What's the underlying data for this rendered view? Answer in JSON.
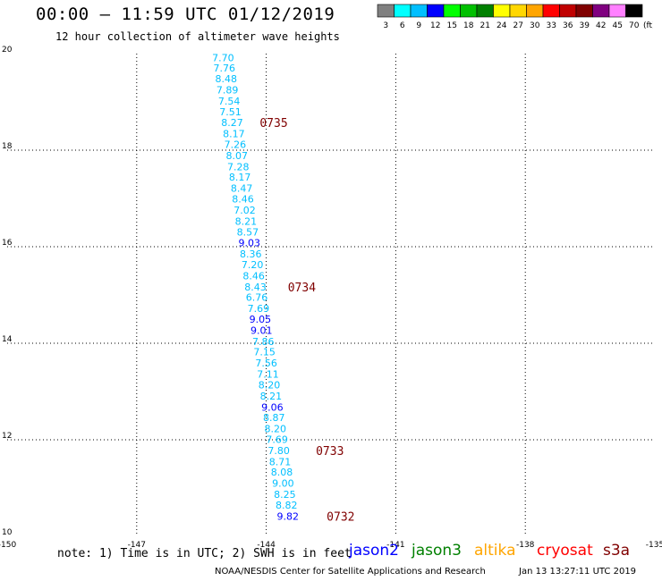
{
  "header": {
    "title": "00:00 – 11:59 UTC 01/12/2019",
    "subtitle": "12 hour collection of altimeter wave heights"
  },
  "colorbar": {
    "labels": [
      "3",
      "6",
      "9",
      "12",
      "15",
      "18",
      "21",
      "24",
      "27",
      "30",
      "33",
      "36",
      "39",
      "42",
      "45",
      "70"
    ],
    "unit": "(ft)",
    "colors": [
      "#808080",
      "#00ffff",
      "#00bfff",
      "#0000ff",
      "#00ff00",
      "#00c000",
      "#008000",
      "#ffff00",
      "#ffd700",
      "#ffa500",
      "#ff0000",
      "#c00000",
      "#800000",
      "#800080",
      "#ff80ff",
      "#000000"
    ]
  },
  "chart_data": {
    "type": "scatter",
    "xlim": [
      -150,
      -135
    ],
    "ylim": [
      10,
      20
    ],
    "x_ticks": [
      "-150",
      "-147",
      "-144",
      "-141",
      "-138",
      "-135"
    ],
    "y_ticks": [
      "10",
      "12",
      "14",
      "16",
      "18",
      "20"
    ],
    "grid": true,
    "legend": "bottom",
    "series": [
      {
        "satellite": "jason3",
        "points": [
          {
            "x": -145.0,
            "y": 19.92,
            "value": "7.70",
            "color": "#00bfff"
          },
          {
            "x": -144.97,
            "y": 19.7,
            "value": "7.76",
            "color": "#00bfff"
          },
          {
            "x": -144.93,
            "y": 19.48,
            "value": "8.48",
            "color": "#00bfff"
          },
          {
            "x": -144.9,
            "y": 19.25,
            "value": "7.89",
            "color": "#00bfff"
          },
          {
            "x": -144.86,
            "y": 19.02,
            "value": "7.54",
            "color": "#00bfff"
          },
          {
            "x": -144.83,
            "y": 18.8,
            "value": "7.51",
            "color": "#00bfff"
          },
          {
            "x": -144.79,
            "y": 18.57,
            "value": "8.27",
            "color": "#00bfff"
          },
          {
            "x": -144.75,
            "y": 18.34,
            "value": "8.17",
            "color": "#00bfff"
          },
          {
            "x": -144.72,
            "y": 18.12,
            "value": "7.26",
            "color": "#00bfff"
          },
          {
            "x": -144.68,
            "y": 17.89,
            "value": "8.07",
            "color": "#00bfff"
          },
          {
            "x": -144.65,
            "y": 17.66,
            "value": "7.28",
            "color": "#00bfff"
          },
          {
            "x": -144.61,
            "y": 17.44,
            "value": "8.17",
            "color": "#00bfff"
          },
          {
            "x": -144.57,
            "y": 17.21,
            "value": "8.47",
            "color": "#00bfff"
          },
          {
            "x": -144.54,
            "y": 16.99,
            "value": "8.46",
            "color": "#00bfff"
          },
          {
            "x": -144.5,
            "y": 16.76,
            "value": "7.02",
            "color": "#00bfff"
          },
          {
            "x": -144.47,
            "y": 16.53,
            "value": "8.21",
            "color": "#00bfff"
          },
          {
            "x": -144.43,
            "y": 16.31,
            "value": "8.57",
            "color": "#00bfff"
          },
          {
            "x": -144.39,
            "y": 16.08,
            "value": "9.03",
            "color": "#0000ff"
          },
          {
            "x": -144.36,
            "y": 15.85,
            "value": "8.36",
            "color": "#00bfff"
          },
          {
            "x": -144.32,
            "y": 15.63,
            "value": "7.20",
            "color": "#00bfff"
          },
          {
            "x": -144.29,
            "y": 15.4,
            "value": "8.46",
            "color": "#00bfff"
          },
          {
            "x": -144.25,
            "y": 15.17,
            "value": "8.43",
            "color": "#00bfff"
          },
          {
            "x": -144.22,
            "y": 14.95,
            "value": "6.76",
            "color": "#00bfff"
          },
          {
            "x": -144.18,
            "y": 14.72,
            "value": "7.69",
            "color": "#00bfff"
          },
          {
            "x": -144.14,
            "y": 14.5,
            "value": "9.05",
            "color": "#0000ff"
          },
          {
            "x": -144.11,
            "y": 14.27,
            "value": "9.01",
            "color": "#0000ff"
          },
          {
            "x": -144.07,
            "y": 14.04,
            "value": "7.86",
            "color": "#00bfff"
          },
          {
            "x": -144.04,
            "y": 13.82,
            "value": "7.15",
            "color": "#00bfff"
          },
          {
            "x": -144.0,
            "y": 13.59,
            "value": "7.56",
            "color": "#00bfff"
          },
          {
            "x": -143.96,
            "y": 13.36,
            "value": "7.11",
            "color": "#00bfff"
          },
          {
            "x": -143.93,
            "y": 13.14,
            "value": "8.20",
            "color": "#00bfff"
          },
          {
            "x": -143.89,
            "y": 12.91,
            "value": "8.21",
            "color": "#00bfff"
          },
          {
            "x": -143.86,
            "y": 12.68,
            "value": "9.06",
            "color": "#0000ff"
          },
          {
            "x": -143.82,
            "y": 12.46,
            "value": "8.87",
            "color": "#00bfff"
          },
          {
            "x": -143.79,
            "y": 12.23,
            "value": "8.20",
            "color": "#00bfff"
          },
          {
            "x": -143.75,
            "y": 12.01,
            "value": "7.69",
            "color": "#00bfff"
          },
          {
            "x": -143.71,
            "y": 11.78,
            "value": "7.80",
            "color": "#00bfff"
          },
          {
            "x": -143.68,
            "y": 11.55,
            "value": "8.71",
            "color": "#00bfff"
          },
          {
            "x": -143.64,
            "y": 11.33,
            "value": "8.08",
            "color": "#00bfff"
          },
          {
            "x": -143.61,
            "y": 11.1,
            "value": "9.00",
            "color": "#00bfff"
          },
          {
            "x": -143.57,
            "y": 10.87,
            "value": "8.25",
            "color": "#00bfff"
          },
          {
            "x": -143.53,
            "y": 10.65,
            "value": "8.82",
            "color": "#00bfff"
          },
          {
            "x": -143.5,
            "y": 10.42,
            "value": "9.82",
            "color": "#0000ff"
          }
        ]
      }
    ],
    "time_labels": [
      {
        "x": -144.15,
        "y": 18.57,
        "text": "0735"
      },
      {
        "x": -143.5,
        "y": 15.17,
        "text": "0734"
      },
      {
        "x": -142.85,
        "y": 11.78,
        "text": "0733"
      },
      {
        "x": -142.6,
        "y": 10.42,
        "text": "0732"
      }
    ],
    "time_label_color": "#800000"
  },
  "note": "note: 1) Time is in UTC; 2) SWH is in feet",
  "satellites": [
    {
      "name": "jason2",
      "color": "#0000ff"
    },
    {
      "name": "jason3",
      "color": "#008000"
    },
    {
      "name": "altika",
      "color": "#ffa500"
    },
    {
      "name": "cryosat",
      "color": "#ff0000"
    },
    {
      "name": "s3a",
      "color": "#800000"
    }
  ],
  "footer": {
    "credit": "NOAA/NESDIS Center for Satellite Applications and Research",
    "timestamp": "Jan 13 13:27:11 UTC 2019"
  }
}
